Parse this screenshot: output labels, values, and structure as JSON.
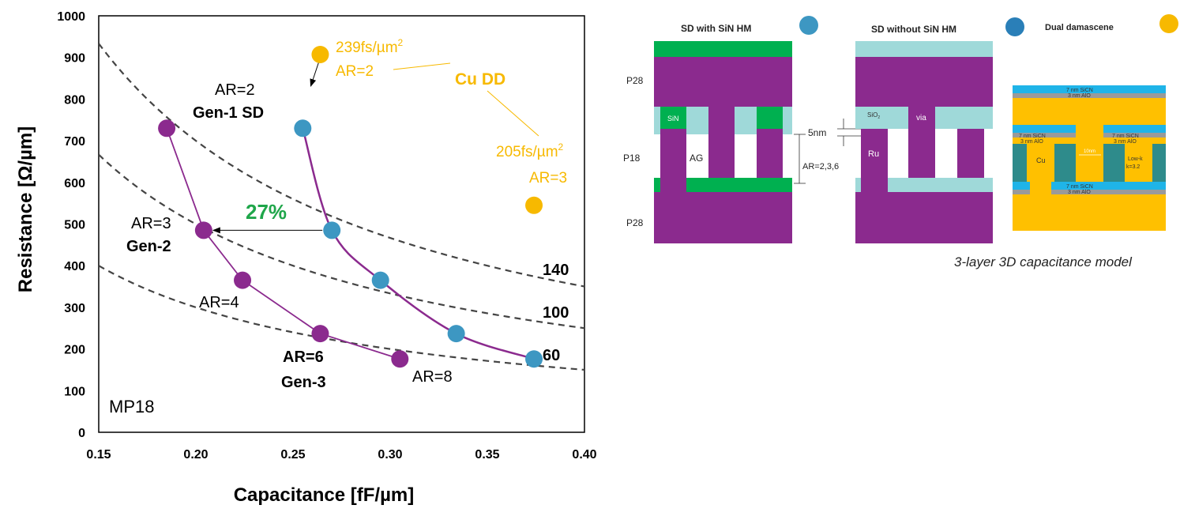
{
  "chart_data": {
    "type": "scatter",
    "xlabel": "Capacitance [fF/µm]",
    "ylabel": "Resistance [Ω/µm]",
    "xlim": [
      0.15,
      0.4
    ],
    "ylim": [
      0,
      1000
    ],
    "xticks": [
      "0.15",
      "0.20",
      "0.25",
      "0.30",
      "0.35",
      "0.40"
    ],
    "yticks": [
      "0",
      "100",
      "200",
      "300",
      "400",
      "500",
      "600",
      "700",
      "800",
      "900",
      "1000"
    ],
    "grid": false,
    "series": [
      {
        "color": "#3d97c2",
        "points": [
          {
            "x": 0.255,
            "y": 730
          },
          {
            "x": 0.27,
            "y": 485
          },
          {
            "x": 0.295,
            "y": 365
          },
          {
            "x": 0.334,
            "y": 237
          },
          {
            "x": 0.374,
            "y": 176
          }
        ]
      },
      {
        "color": "#8b2a8e",
        "points": [
          {
            "x": 0.185,
            "y": 730
          },
          {
            "x": 0.204,
            "y": 485
          },
          {
            "x": 0.224,
            "y": 365
          },
          {
            "x": 0.264,
            "y": 237
          },
          {
            "x": 0.305,
            "y": 176
          }
        ]
      },
      {
        "color": "#f7b900",
        "points": [
          {
            "x": 0.264,
            "y": 907
          },
          {
            "x": 0.374,
            "y": 545
          }
        ]
      }
    ],
    "iso_curves": [
      {
        "label": "140",
        "rc": 140
      },
      {
        "label": "100",
        "rc": 100
      },
      {
        "label": "60",
        "rc": 60
      }
    ],
    "annotations": {
      "ar2": "AR=2",
      "gen1": "Gen-1 SD",
      "ar3": "AR=3",
      "gen2": "Gen-2",
      "ar4": "AR=4",
      "ar6": "AR=6",
      "gen3": "Gen-3",
      "ar8": "AR=8",
      "pct": "27%",
      "mp": "MP18",
      "cu_dd": "Cu DD",
      "dd1_tau": "239fs/µm",
      "dd1_ar": "AR=2",
      "dd2_tau": "205fs/µm",
      "dd2_ar": "AR=3",
      "sup": "2"
    },
    "colors": {
      "blue": "#3d97c2",
      "purple": "#8b2a8e",
      "gold": "#f7b900",
      "green": "#1fa64a"
    }
  },
  "schematic": {
    "titles": {
      "with_hm": "SD with SiN HM",
      "without_hm": "SD without SiN HM",
      "dual": "Dual damascene"
    },
    "legend_colors": {
      "with_hm": "#3d97c2",
      "without_hm": "#2a7fb8",
      "dual": "#f7b900"
    },
    "labels": {
      "p28_top": "P28",
      "p18": "P18",
      "p28_bottom": "P28",
      "sin": "SiN",
      "ag": "AG",
      "five_nm": "5nm",
      "ar_range": "AR=2,3,6",
      "sio2": "SiO",
      "sio2_sub": "2",
      "via": "via",
      "ru": "Ru"
    },
    "dd_labels": {
      "top_sicn": "7 nm SiCN",
      "top_alo": "3 nm AlO",
      "mid_sicn": "7 nm SiCN",
      "mid_alo": "3 nm AlO",
      "mid_sicn2": "7 nm SiCN",
      "mid_alo2": "3 nm AlO",
      "bot_sicn": "7 nm SiCN",
      "bot_alo": "3 nm AlO",
      "cu": "Cu",
      "ten_nm": "10nm",
      "lowk1": "Low-k",
      "lowk2": "k=3.2"
    },
    "caption": "3-layer 3D capacitance model",
    "colors": {
      "purple": "#8b2a8e",
      "green": "#00b050",
      "teal": "#9fd9d9",
      "gold": "#ffc000",
      "lowk": "#2e8b8b",
      "blue_cap": "#1fb4e8",
      "gray_cap": "#9a9a9a"
    }
  }
}
